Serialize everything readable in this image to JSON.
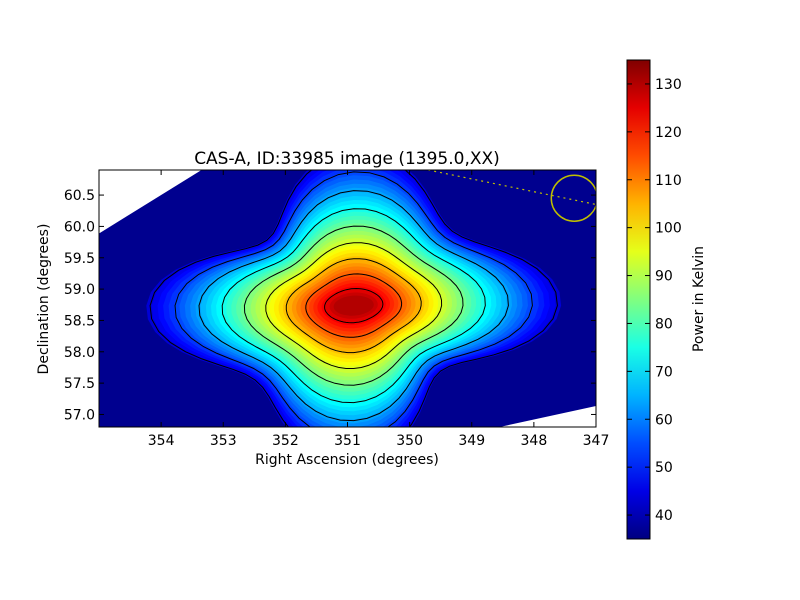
{
  "chart_data": {
    "type": "heatmap",
    "title": "CAS-A, ID:33985 image (1395.0,XX)",
    "xlabel": "Right Ascension (degrees)",
    "ylabel": "Declination (degrees)",
    "xlim": [
      355.0,
      347.0
    ],
    "ylim": [
      56.8,
      60.9
    ],
    "x_ticks": [
      "354",
      "353",
      "352",
      "351",
      "350",
      "349",
      "348",
      "347"
    ],
    "x_tick_values": [
      354,
      353,
      352,
      351,
      350,
      349,
      348,
      347
    ],
    "y_ticks": [
      "57.0",
      "57.5",
      "58.0",
      "58.5",
      "59.0",
      "59.5",
      "60.0",
      "60.5"
    ],
    "y_tick_values": [
      57.0,
      57.5,
      58.0,
      58.5,
      59.0,
      59.5,
      60.0,
      60.5
    ],
    "peak": {
      "ra": 350.9,
      "dec": 58.8,
      "value": 130
    },
    "background_value": 36,
    "contour_levels": [
      45,
      55,
      65,
      75,
      85,
      95,
      105,
      115,
      125
    ],
    "colormap": "jet",
    "colorbar": {
      "label": "Power in Kelvin",
      "range": [
        35,
        135
      ],
      "ticks": [
        "40",
        "50",
        "60",
        "70",
        "80",
        "90",
        "100",
        "110",
        "120",
        "130"
      ],
      "tick_values": [
        40,
        50,
        60,
        70,
        80,
        90,
        100,
        110,
        120,
        130
      ]
    },
    "circle_marker": {
      "ra": 347.35,
      "dec": 60.45,
      "radius_deg": 0.37,
      "color": "#bfbf00"
    },
    "dotted_line": {
      "from": [
        349.7,
        60.9
      ],
      "to": [
        347.0,
        60.35
      ],
      "color": "#bfbf00"
    },
    "grid": false
  }
}
